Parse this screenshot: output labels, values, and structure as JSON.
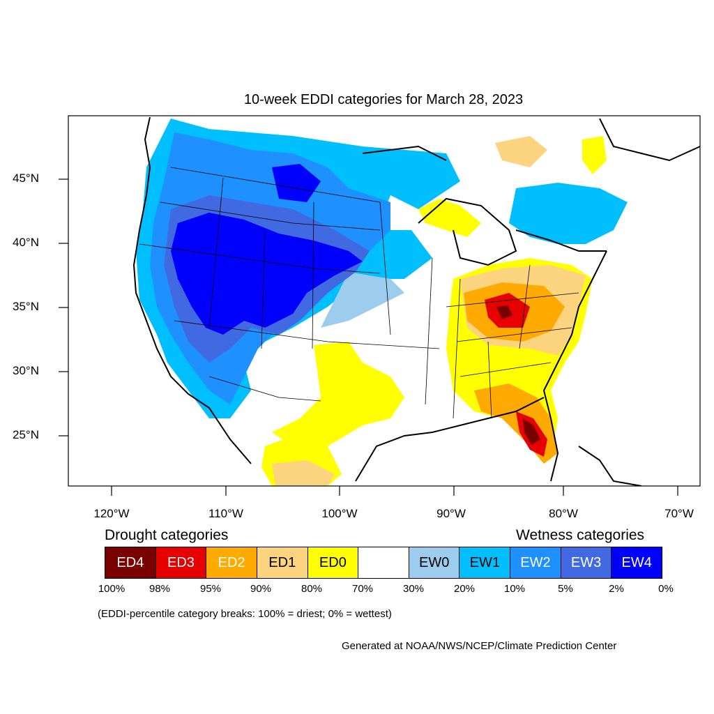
{
  "title": "10-week EDDI categories for March 28, 2023",
  "lat_labels": [
    "45°N",
    "40°N",
    "35°N",
    "30°N",
    "25°N"
  ],
  "lon_labels": [
    "120°W",
    "110°W",
    "100°W",
    "90°W",
    "80°W",
    "70°W"
  ],
  "legend": {
    "drought_heading": "Drought categories",
    "wetness_heading": "Wetness categories",
    "categories": [
      {
        "label": "ED4",
        "color": "#7a0000",
        "text_color": "#ffffff"
      },
      {
        "label": "ED3",
        "color": "#e60000",
        "text_color": "#ffffff"
      },
      {
        "label": "ED2",
        "color": "#ffaa00",
        "text_color": "#ffffff"
      },
      {
        "label": "ED1",
        "color": "#fcd37f",
        "text_color": "#000000"
      },
      {
        "label": "ED0",
        "color": "#ffff00",
        "text_color": "#000000"
      },
      {
        "label": "",
        "color": "#ffffff",
        "text_color": "#000000"
      },
      {
        "label": "EW0",
        "color": "#9ccdee",
        "text_color": "#000000"
      },
      {
        "label": "EW1",
        "color": "#00bfff",
        "text_color": "#000000"
      },
      {
        "label": "EW2",
        "color": "#1e90ff",
        "text_color": "#ffffff"
      },
      {
        "label": "EW3",
        "color": "#4169e1",
        "text_color": "#ffffff"
      },
      {
        "label": "EW4",
        "color": "#0000ff",
        "text_color": "#ffffff"
      }
    ],
    "percentiles": [
      "100%",
      "98%",
      "95%",
      "90%",
      "80%",
      "70%",
      "30%",
      "20%",
      "10%",
      "5%",
      "2%",
      "0%"
    ]
  },
  "note": "(EDDI-percentile category breaks: 100% = driest; 0% = wettest)",
  "credit": "Generated at NOAA/NWS/NCEP/Climate Prediction Center"
}
